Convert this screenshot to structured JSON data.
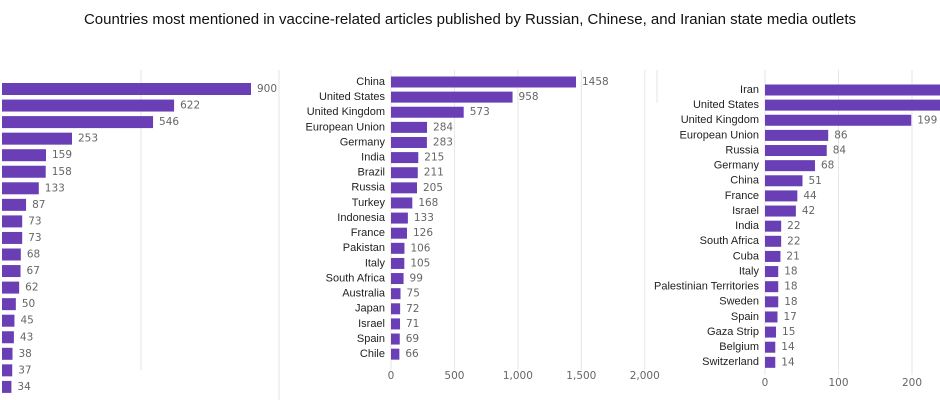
{
  "title": "Countries most mentioned in vaccine-related articles published by Russian, Chinese, and Iranian state media outlets",
  "colors": {
    "bar": "#6a3fb5",
    "grid": "#e6e6e6",
    "label": "#222222",
    "value": "#666666"
  },
  "chart_data": [
    {
      "type": "bar",
      "orientation": "horizontal",
      "categories": [
        "",
        "",
        "",
        "",
        "",
        "",
        "",
        "",
        "",
        "",
        "",
        "",
        "",
        "",
        "",
        "",
        "",
        "",
        ""
      ],
      "values": [
        900,
        622,
        546,
        253,
        159,
        158,
        133,
        87,
        73,
        73,
        68,
        67,
        62,
        50,
        45,
        43,
        38,
        37,
        34
      ],
      "note_visible": "category labels cropped at left edge",
      "xlim": [
        0,
        1000
      ],
      "xticks": [],
      "grid": true
    },
    {
      "type": "bar",
      "orientation": "horizontal",
      "categories": [
        "China",
        "United States",
        "United Kingdom",
        "European Union",
        "Germany",
        "India",
        "Brazil",
        "Russia",
        "Turkey",
        "Indonesia",
        "France",
        "Pakistan",
        "Italy",
        "South Africa",
        "Australia",
        "Japan",
        "Israel",
        "Spain",
        "Chile"
      ],
      "values": [
        1458,
        958,
        573,
        284,
        283,
        215,
        211,
        205,
        168,
        133,
        126,
        106,
        105,
        99,
        75,
        72,
        71,
        69,
        66
      ],
      "xlim": [
        0,
        2000
      ],
      "xticks": [
        "0",
        "500",
        "1,000",
        "1,500",
        "2,000"
      ],
      "grid": true
    },
    {
      "type": "bar",
      "orientation": "horizontal",
      "categories": [
        "Iran",
        "United States",
        "United Kingdom",
        "European Union",
        "Russia",
        "Germany",
        "China",
        "France",
        "Israel",
        "India",
        "South Africa",
        "Cuba",
        "Italy",
        "Palestinian Territories",
        "Sweden",
        "Spain",
        "Gaza Strip",
        "Belgium",
        "Switzerland"
      ],
      "values": [
        null,
        null,
        199,
        86,
        84,
        68,
        51,
        44,
        42,
        22,
        22,
        21,
        18,
        18,
        18,
        17,
        15,
        14,
        14
      ],
      "xlim": [
        0,
        250
      ],
      "xticks": [
        "0",
        "100",
        "200"
      ],
      "grid": true
    }
  ]
}
